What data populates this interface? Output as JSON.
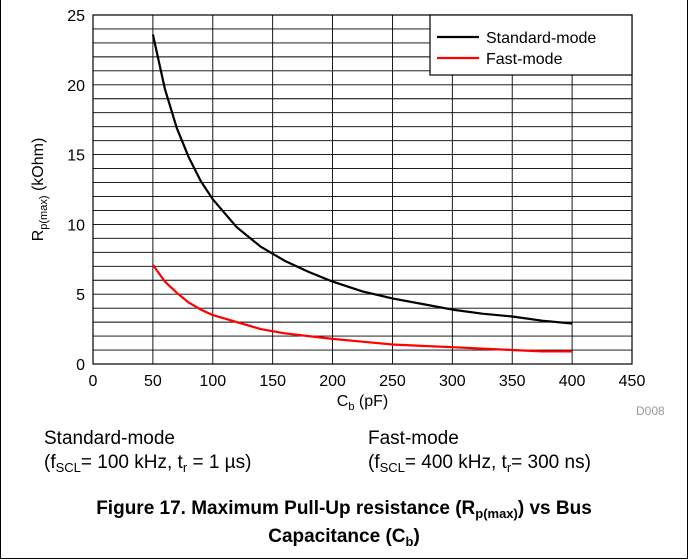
{
  "chart_data": {
    "type": "line",
    "x": [
      50,
      60,
      70,
      80,
      90,
      100,
      120,
      140,
      160,
      180,
      200,
      225,
      250,
      275,
      300,
      325,
      350,
      375,
      400
    ],
    "series": [
      {
        "name": "Standard-mode",
        "color": "#000000",
        "values": [
          23.6,
          19.7,
          16.9,
          14.8,
          13.1,
          11.8,
          9.8,
          8.4,
          7.4,
          6.6,
          5.9,
          5.2,
          4.7,
          4.3,
          3.9,
          3.6,
          3.4,
          3.1,
          2.9
        ]
      },
      {
        "name": "Fast-mode",
        "color": "#ff0000",
        "values": [
          7.1,
          5.9,
          5.1,
          4.4,
          3.9,
          3.5,
          3.0,
          2.5,
          2.2,
          2.0,
          1.8,
          1.6,
          1.4,
          1.3,
          1.2,
          1.1,
          1.0,
          0.9,
          0.9
        ]
      }
    ],
    "xlabel_main": "C",
    "xlabel_sub": "b",
    "xlabel_unit": " (pF)",
    "ylabel_main": "R",
    "ylabel_sub": "p(max)",
    "ylabel_unit": " (kOhm)",
    "xlim": [
      0,
      450
    ],
    "ylim": [
      0,
      25
    ],
    "x_ticks": [
      "0",
      "50",
      "100",
      "150",
      "200",
      "250",
      "300",
      "350",
      "400",
      "450"
    ],
    "y_ticks": [
      "0",
      "5",
      "10",
      "15",
      "20",
      "25"
    ],
    "grid": true,
    "legend_position": "top-right"
  },
  "figure_code": "D008",
  "notes": {
    "standard": {
      "title": "Standard-mode",
      "cond_open": "(f",
      "cond_sub": "SCL",
      "cond_mid": "= 100 kHz, t",
      "cond_sub2": "r",
      "cond_end": " = 1 µs)"
    },
    "fast": {
      "title": "Fast-mode",
      "cond_open": "(f",
      "cond_sub": "SCL",
      "cond_mid": "= 400 kHz, t",
      "cond_sub2": "r",
      "cond_end": "= 300 ns)"
    }
  },
  "caption": {
    "line1_start": "Figure 17. Maximum Pull-Up resistance (R",
    "line1_sub": "p(max)",
    "line1_end": ") vs Bus",
    "line2_start": "Capacitance (C",
    "line2_sub": "b",
    "line2_end": ")"
  }
}
